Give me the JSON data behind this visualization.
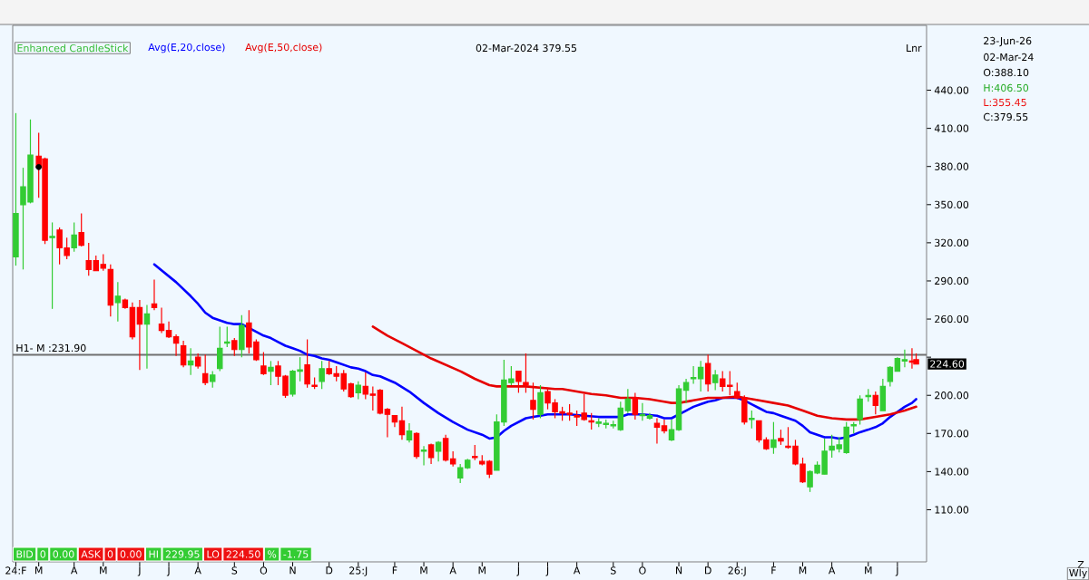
{
  "chart_data": {
    "type": "candlestick",
    "series": [
      {
        "name": "Enhanced CandleStick",
        "color": "#33bb33",
        "x": [
          "2024-02-09",
          "2024-02-16",
          "2024-02-23",
          "2024-03-02",
          "2024-03-08",
          "2024-03-15",
          "2024-03-22",
          "2024-03-29",
          "2024-04-05",
          "2024-04-12",
          "2024-04-19",
          "2024-04-26",
          "2024-05-03",
          "2024-05-10",
          "2024-05-17",
          "2024-05-24",
          "2024-05-31",
          "2024-06-07",
          "2024-06-14",
          "2024-06-21",
          "2024-06-28",
          "2024-07-05",
          "2024-07-12",
          "2024-07-19",
          "2024-07-26",
          "2024-08-02",
          "2024-08-09",
          "2024-08-16",
          "2024-08-23",
          "2024-08-30",
          "2024-09-06",
          "2024-09-13",
          "2024-09-20",
          "2024-09-27",
          "2024-10-04",
          "2024-10-11",
          "2024-10-18",
          "2024-10-25",
          "2024-11-01",
          "2024-11-08",
          "2024-11-15",
          "2024-11-22",
          "2024-11-29",
          "2024-12-06",
          "2024-12-13",
          "2024-12-20",
          "2024-12-27",
          "2025-01-03",
          "2025-01-10",
          "2025-01-17",
          "2025-01-24",
          "2025-01-31",
          "2025-02-07",
          "2025-02-14",
          "2025-02-21",
          "2025-02-28",
          "2025-03-07",
          "2025-03-14",
          "2025-03-21",
          "2025-03-28",
          "2025-04-04",
          "2025-04-11",
          "2025-04-18",
          "2025-04-25",
          "2025-05-02",
          "2025-05-09",
          "2025-05-16",
          "2025-05-23",
          "2025-05-30",
          "2025-06-06",
          "2025-06-13",
          "2025-06-20",
          "2025-06-27",
          "2025-07-04",
          "2025-07-11",
          "2025-07-18",
          "2025-07-25",
          "2025-08-01",
          "2025-08-08",
          "2025-08-15",
          "2025-08-22",
          "2025-08-29",
          "2025-09-05",
          "2025-09-12",
          "2025-09-19",
          "2025-09-26",
          "2025-10-03",
          "2025-10-10",
          "2025-10-17",
          "2025-10-24",
          "2025-10-31",
          "2025-11-07",
          "2025-11-14",
          "2025-11-21",
          "2025-11-28",
          "2025-12-05",
          "2025-12-12",
          "2025-12-19",
          "2025-12-26",
          "2026-01-02",
          "2026-01-09",
          "2026-01-16",
          "2026-01-23",
          "2026-01-30",
          "2026-02-06",
          "2026-02-13",
          "2026-02-20",
          "2026-02-27",
          "2026-03-06",
          "2026-03-13",
          "2026-03-20",
          "2026-03-27",
          "2026-04-03",
          "2026-04-10",
          "2026-04-17",
          "2026-04-24",
          "2026-04-30",
          "2026-05-08",
          "2026-05-15",
          "2026-05-22",
          "2026-05-29",
          "2026-06-05",
          "2026-06-12",
          "2026-06-19",
          "2026-06-23"
        ],
        "ohlc": [
          [
            309,
            422,
            302,
            343
          ],
          [
            350,
            379,
            299,
            364
          ],
          [
            352,
            417,
            351,
            389
          ],
          [
            388.1,
            406.5,
            355.45,
            379.55
          ],
          [
            386,
            387,
            319,
            322
          ],
          [
            324,
            336,
            268,
            325
          ],
          [
            330,
            332,
            303,
            316
          ],
          [
            316,
            324,
            307,
            310
          ],
          [
            316,
            336,
            313,
            326
          ],
          [
            328,
            343,
            317,
            318
          ],
          [
            306,
            320,
            294,
            299
          ],
          [
            306,
            310,
            298,
            298
          ],
          [
            303,
            311,
            298,
            300
          ],
          [
            299,
            303,
            262,
            271
          ],
          [
            273,
            289,
            258,
            278
          ],
          [
            275,
            276,
            268,
            269
          ],
          [
            269,
            273,
            244,
            246
          ],
          [
            269,
            275,
            220,
            256
          ],
          [
            256,
            271,
            221,
            264
          ],
          [
            272,
            291,
            267,
            269
          ],
          [
            256,
            269,
            249,
            251
          ],
          [
            251,
            258,
            245,
            246
          ],
          [
            246,
            248,
            231,
            241
          ],
          [
            239,
            243,
            222,
            224
          ],
          [
            224,
            237,
            216,
            227
          ],
          [
            230,
            233,
            221,
            223
          ],
          [
            217,
            232,
            208,
            210
          ],
          [
            211,
            219,
            206,
            216
          ],
          [
            221,
            254,
            219,
            237
          ],
          [
            241,
            254,
            238,
            242
          ],
          [
            243,
            245,
            231,
            236
          ],
          [
            236,
            263,
            230,
            255
          ],
          [
            257,
            267,
            233,
            238
          ],
          [
            242,
            244,
            227,
            228
          ],
          [
            223,
            234,
            216,
            217
          ],
          [
            219,
            227,
            208,
            222
          ],
          [
            223,
            227,
            208,
            215
          ],
          [
            215,
            216,
            198,
            200
          ],
          [
            201,
            220,
            199,
            219
          ],
          [
            219,
            230,
            211,
            220
          ],
          [
            224,
            244,
            206,
            209
          ],
          [
            208,
            214,
            205,
            207
          ],
          [
            211,
            227,
            205,
            221
          ],
          [
            221,
            227,
            216,
            217
          ],
          [
            217,
            223,
            211,
            215
          ],
          [
            217,
            220,
            203,
            205
          ],
          [
            209,
            210,
            198,
            199
          ],
          [
            202,
            211,
            197,
            208
          ],
          [
            207,
            218,
            197,
            201
          ],
          [
            201,
            207,
            188,
            200
          ],
          [
            204,
            205,
            185,
            186
          ],
          [
            189,
            190,
            167,
            185
          ],
          [
            184,
            184,
            175,
            179
          ],
          [
            180,
            191,
            165,
            169
          ],
          [
            165,
            178,
            163,
            172
          ],
          [
            170,
            171,
            150,
            152
          ],
          [
            156,
            160,
            145,
            157
          ],
          [
            161,
            162,
            146,
            151
          ],
          [
            156,
            164,
            148,
            163
          ],
          [
            166,
            169,
            148,
            149
          ],
          [
            150,
            156,
            144,
            146
          ],
          [
            135,
            146,
            131,
            143
          ],
          [
            143,
            150,
            142,
            149
          ],
          [
            152,
            161,
            149,
            151
          ],
          [
            148,
            153,
            145,
            146
          ],
          [
            148,
            149,
            135,
            138
          ],
          [
            141,
            185,
            141,
            179
          ],
          [
            179,
            228,
            176,
            212
          ],
          [
            210,
            223,
            208,
            213
          ],
          [
            219,
            219,
            202,
            211
          ],
          [
            210,
            233,
            202,
            208
          ],
          [
            196,
            210,
            181,
            189
          ],
          [
            185,
            208,
            182,
            202
          ],
          [
            203,
            206,
            189,
            194
          ],
          [
            194,
            197,
            182,
            187
          ],
          [
            187,
            191,
            180,
            186
          ],
          [
            186,
            193,
            180,
            185
          ],
          [
            184,
            188,
            176,
            183
          ],
          [
            186,
            201,
            180,
            181
          ],
          [
            180,
            186,
            173,
            179
          ],
          [
            178,
            182,
            175,
            179
          ],
          [
            177,
            181,
            174,
            178
          ],
          [
            176,
            180,
            174,
            177
          ],
          [
            173,
            195,
            172,
            190
          ],
          [
            188,
            205,
            186,
            197
          ],
          [
            198,
            202,
            181,
            185
          ],
          [
            184,
            194,
            180,
            185
          ],
          [
            182,
            186,
            181,
            184
          ],
          [
            178,
            182,
            162,
            175
          ],
          [
            176,
            181,
            170,
            172
          ],
          [
            165,
            181,
            164,
            173
          ],
          [
            173,
            208,
            172,
            205
          ],
          [
            204,
            213,
            194,
            210
          ],
          [
            213,
            223,
            209,
            214
          ],
          [
            213,
            227,
            203,
            222
          ],
          [
            225,
            232,
            203,
            209
          ],
          [
            210,
            220,
            204,
            216
          ],
          [
            213,
            219,
            203,
            207
          ],
          [
            208,
            219,
            200,
            207
          ],
          [
            203,
            210,
            197,
            198
          ],
          [
            198,
            200,
            177,
            179
          ],
          [
            181,
            188,
            174,
            182
          ],
          [
            180,
            180,
            163,
            165
          ],
          [
            165,
            167,
            157,
            158
          ],
          [
            159,
            179,
            154,
            165
          ],
          [
            166,
            173,
            161,
            164
          ],
          [
            160,
            175,
            158,
            159
          ],
          [
            160,
            165,
            145,
            146
          ],
          [
            146,
            151,
            131,
            132
          ],
          [
            128,
            141,
            124,
            140
          ],
          [
            139,
            148,
            138,
            145
          ],
          [
            138,
            166,
            138,
            156
          ],
          [
            157,
            169,
            151,
            160
          ],
          [
            158,
            167,
            155,
            161
          ],
          [
            155,
            179,
            154,
            175
          ],
          [
            176,
            179,
            170,
            177
          ],
          [
            181,
            200,
            177,
            197
          ],
          [
            199,
            205,
            195,
            200
          ],
          [
            200,
            203,
            185,
            192
          ],
          [
            188,
            213,
            188,
            207
          ],
          [
            211,
            223,
            207,
            222
          ],
          [
            219,
            230,
            219,
            229
          ],
          [
            227,
            236,
            222,
            228
          ],
          [
            227,
            237,
            221,
            226
          ],
          [
            228,
            233,
            224.5,
            224.6
          ]
        ],
        "colors": [
          "#33cc33",
          "#33cc33",
          "#33cc33",
          "#ff0000",
          "#ff0000",
          "#33cc33",
          "#ff0000",
          "#ff0000",
          "#33cc33",
          "#ff0000",
          "#ff0000",
          "#ff0000",
          "#ff0000",
          "#ff0000",
          "#33cc33",
          "#ff0000",
          "#ff0000",
          "#ff0000",
          "#33cc33",
          "#ff0000",
          "#ff0000",
          "#ff0000",
          "#ff0000",
          "#ff0000",
          "#33cc33",
          "#ff0000",
          "#ff0000",
          "#33cc33",
          "#33cc33",
          "#33cc33",
          "#ff0000",
          "#33cc33",
          "#ff0000",
          "#ff0000",
          "#ff0000",
          "#33cc33",
          "#ff0000",
          "#ff0000",
          "#33cc33",
          "#33cc33",
          "#ff0000",
          "#ff0000",
          "#33cc33",
          "#ff0000",
          "#ff0000",
          "#ff0000",
          "#ff0000",
          "#33cc33",
          "#ff0000",
          "#ff0000",
          "#ff0000",
          "#ff0000",
          "#ff0000",
          "#ff0000",
          "#33cc33",
          "#ff0000",
          "#33cc33",
          "#ff0000",
          "#33cc33",
          "#ff0000",
          "#ff0000",
          "#33cc33",
          "#33cc33",
          "#ff0000",
          "#ff0000",
          "#ff0000",
          "#33cc33",
          "#33cc33",
          "#33cc33",
          "#ff0000",
          "#ff0000",
          "#ff0000",
          "#33cc33",
          "#ff0000",
          "#ff0000",
          "#ff0000",
          "#ff0000",
          "#ff0000",
          "#ff0000",
          "#ff0000",
          "#33cc33",
          "#33cc33",
          "#33cc33",
          "#33cc33",
          "#33cc33",
          "#ff0000",
          "#33cc33",
          "#33cc33",
          "#ff0000",
          "#ff0000",
          "#33cc33",
          "#33cc33",
          "#33cc33",
          "#33cc33",
          "#33cc33",
          "#ff0000",
          "#33cc33",
          "#ff0000",
          "#ff0000",
          "#ff0000",
          "#ff0000",
          "#33cc33",
          "#ff0000",
          "#ff0000",
          "#33cc33",
          "#ff0000",
          "#ff0000",
          "#ff0000",
          "#ff0000",
          "#33cc33",
          "#33cc33",
          "#33cc33",
          "#33cc33",
          "#33cc33",
          "#33cc33",
          "#33cc33",
          "#33cc33",
          "#33cc33",
          "#ff0000",
          "#33cc33",
          "#33cc33",
          "#33cc33",
          "#33cc33",
          "#ff0000",
          "#ff0000"
        ]
      },
      {
        "name": "Avg(E,20,close)",
        "type": "line",
        "color": "#0000ff",
        "x": [
          "2024-06-21",
          "2024-07-12",
          "2024-07-26",
          "2024-08-02",
          "2024-08-09",
          "2024-08-16",
          "2024-08-23",
          "2024-08-30",
          "2024-09-06",
          "2024-09-13",
          "2024-09-20",
          "2024-09-27",
          "2024-10-04",
          "2024-10-11",
          "2024-10-18",
          "2024-10-25",
          "2024-11-01",
          "2024-11-08",
          "2024-11-15",
          "2024-11-22",
          "2024-11-29",
          "2024-12-06",
          "2024-12-13",
          "2024-12-20",
          "2024-12-27",
          "2025-01-03",
          "2025-01-10",
          "2025-01-17",
          "2025-01-24",
          "2025-02-07",
          "2025-02-21",
          "2025-03-07",
          "2025-03-21",
          "2025-04-04",
          "2025-04-18",
          "2025-05-02",
          "2025-05-09",
          "2025-05-16",
          "2025-05-23",
          "2025-05-30",
          "2025-06-06",
          "2025-06-13",
          "2025-06-20",
          "2025-06-27",
          "2025-07-04",
          "2025-07-11",
          "2025-07-25",
          "2025-08-08",
          "2025-08-22",
          "2025-09-05",
          "2025-09-12",
          "2025-09-19",
          "2025-10-03",
          "2025-10-17",
          "2025-10-24",
          "2025-10-31",
          "2025-11-07",
          "2025-11-14",
          "2025-11-21",
          "2025-11-28",
          "2025-12-05",
          "2025-12-12",
          "2025-12-19",
          "2025-12-26",
          "2026-01-02",
          "2026-01-09",
          "2026-01-16",
          "2026-01-23",
          "2026-01-30",
          "2026-02-06",
          "2026-02-13",
          "2026-02-20",
          "2026-02-27",
          "2026-03-06",
          "2026-03-13",
          "2026-03-20",
          "2026-03-27",
          "2026-04-03",
          "2026-04-10",
          "2026-04-17",
          "2026-04-24",
          "2026-04-30",
          "2026-05-08",
          "2026-05-15",
          "2026-05-22",
          "2026-05-29",
          "2026-06-05",
          "2026-06-12",
          "2026-06-19",
          "2026-06-23"
        ],
        "values": [
          303,
          289,
          278,
          272,
          265,
          261,
          259,
          257,
          256,
          256,
          253,
          250,
          247,
          245,
          242,
          239,
          237,
          235,
          232,
          231,
          229,
          228,
          226,
          224,
          222,
          221,
          219,
          216,
          215,
          210,
          203,
          194,
          186,
          179,
          173,
          169,
          166,
          167,
          172,
          176,
          179,
          182,
          183,
          184,
          185,
          185,
          185,
          184,
          183,
          183,
          183,
          185,
          185,
          184,
          182,
          182,
          185,
          188,
          191,
          193,
          195,
          196,
          198,
          198,
          198,
          196,
          193,
          190,
          187,
          186,
          184,
          182,
          180,
          176,
          171,
          169,
          167,
          167,
          166,
          167,
          169,
          171,
          173,
          175,
          178,
          183,
          187,
          191,
          194,
          197
        ]
      },
      {
        "name": "Avg(E,50,close)",
        "type": "line",
        "color": "#e60000",
        "x": [
          "2025-01-17",
          "2025-01-31",
          "2025-02-14",
          "2025-02-28",
          "2025-03-14",
          "2025-03-28",
          "2025-04-11",
          "2025-04-25",
          "2025-05-09",
          "2025-05-16",
          "2025-05-30",
          "2025-06-13",
          "2025-06-27",
          "2025-07-11",
          "2025-07-18",
          "2025-08-01",
          "2025-08-15",
          "2025-08-29",
          "2025-09-12",
          "2025-09-26",
          "2025-10-10",
          "2025-10-24",
          "2025-10-31",
          "2025-11-07",
          "2025-11-21",
          "2025-12-05",
          "2025-12-19",
          "2026-01-02",
          "2026-01-09",
          "2026-01-23",
          "2026-02-06",
          "2026-02-20",
          "2026-03-06",
          "2026-03-20",
          "2026-04-03",
          "2026-04-17",
          "2026-04-30",
          "2026-05-15",
          "2026-05-29",
          "2026-06-12",
          "2026-06-23"
        ],
        "values": [
          254,
          247,
          241,
          235,
          229,
          224,
          219,
          213,
          208,
          207,
          207,
          207,
          206,
          205,
          205,
          203,
          201,
          200,
          198,
          198,
          197,
          195,
          194,
          194,
          196,
          198,
          198,
          199,
          198,
          196,
          194,
          192,
          188,
          184,
          182,
          181,
          181,
          183,
          185,
          188,
          191
        ]
      },
      {
        "type": "scatter",
        "color": "#000000",
        "marker": "circle",
        "x": [
          "2024-03-02"
        ],
        "values": [
          379.55
        ]
      }
    ],
    "xlim": [
      "2024-02-06",
      "2026-07-03"
    ],
    "xticks": [
      {
        "value": "2024-02-09",
        "label": "24:F"
      },
      {
        "value": "2024-03-02",
        "label": "M"
      },
      {
        "value": "2024-04-05",
        "label": "A"
      },
      {
        "value": "2024-05-03",
        "label": "M"
      },
      {
        "value": "2024-06-07",
        "label": "J"
      },
      {
        "value": "2024-07-05",
        "label": "J"
      },
      {
        "value": "2024-08-02",
        "label": "A"
      },
      {
        "value": "2024-09-06",
        "label": "S"
      },
      {
        "value": "2024-10-04",
        "label": "O"
      },
      {
        "value": "2024-11-01",
        "label": "N"
      },
      {
        "value": "2024-12-06",
        "label": "D"
      },
      {
        "value": "2025-01-03",
        "label": "25:J"
      },
      {
        "value": "2025-02-07",
        "label": "F"
      },
      {
        "value": "2025-03-07",
        "label": "M"
      },
      {
        "value": "2025-04-04",
        "label": "A"
      },
      {
        "value": "2025-05-02",
        "label": "M"
      },
      {
        "value": "2025-06-06",
        "label": "J"
      },
      {
        "value": "2025-07-04",
        "label": "J"
      },
      {
        "value": "2025-08-01",
        "label": "A"
      },
      {
        "value": "2025-09-05",
        "label": "S"
      },
      {
        "value": "2025-10-03",
        "label": "O"
      },
      {
        "value": "2025-11-07",
        "label": "N"
      },
      {
        "value": "2025-12-05",
        "label": "D"
      },
      {
        "value": "2026-01-02",
        "label": "26:J"
      },
      {
        "value": "2026-02-06",
        "label": "F"
      },
      {
        "value": "2026-03-06",
        "label": "M"
      },
      {
        "value": "2026-04-03",
        "label": "A"
      },
      {
        "value": "2026-05-08",
        "label": "M"
      },
      {
        "value": "2026-06-05",
        "label": "J"
      }
    ],
    "ylim": [
      69,
      491
    ],
    "yticks": [
      {
        "value": 110,
        "label": "110.00"
      },
      {
        "value": 140,
        "label": "140.00"
      },
      {
        "value": 170,
        "label": "170.00"
      },
      {
        "value": 200,
        "label": "200.00"
      },
      {
        "value": 230,
        "label": null
      },
      {
        "value": 260,
        "label": "260.00"
      },
      {
        "value": 290,
        "label": "290.00"
      },
      {
        "value": 320,
        "label": "320.00"
      },
      {
        "value": 350,
        "label": "350.00"
      },
      {
        "value": 380,
        "label": "380.00"
      },
      {
        "value": 410,
        "label": "410.00"
      },
      {
        "value": 440,
        "label": "440.00"
      }
    ],
    "ref_lines": [
      {
        "axis": "y",
        "value": 231.9,
        "label": "H1- M :231.90",
        "color": "#707070"
      }
    ],
    "legend": "top left",
    "annotations": [
      "02-Mar-2024 379.55",
      "Lnr",
      "23-Jun-26",
      "02-Mar-24",
      "O:388.10",
      "H:406.50",
      "L:355.45",
      "C:379.55",
      "224.60",
      "BID",
      "0",
      "0.00",
      "ASK",
      "0",
      "0.00",
      "HI",
      "229.95",
      "LO",
      "224.50",
      "%",
      "-1.75",
      "Z",
      "Wly"
    ]
  }
}
